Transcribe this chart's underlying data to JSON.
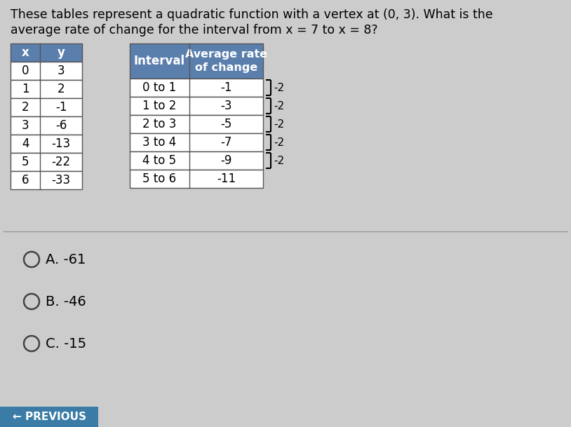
{
  "title_line1": "These tables represent a quadratic function with a vertex at (0, 3). What is the",
  "title_line2": "average rate of change for the interval from x = 7 to x = 8?",
  "table1_headers": [
    "x",
    "y"
  ],
  "table1_data": [
    [
      "0",
      "3"
    ],
    [
      "1",
      "2"
    ],
    [
      "2",
      "-1"
    ],
    [
      "3",
      "-6"
    ],
    [
      "4",
      "-13"
    ],
    [
      "5",
      "-22"
    ],
    [
      "6",
      "-33"
    ]
  ],
  "table2_header1": "Interval",
  "table2_header2": "Average rate\nof change",
  "table2_data": [
    [
      "0 to 1",
      "-1"
    ],
    [
      "1 to 2",
      "-3"
    ],
    [
      "2 to 3",
      "-5"
    ],
    [
      "3 to 4",
      "-7"
    ],
    [
      "4 to 5",
      "-9"
    ],
    [
      "5 to 6",
      "-11"
    ]
  ],
  "bracket_labels": [
    "-2",
    "-2",
    "-2",
    "-2",
    "-2"
  ],
  "choices": [
    "A. -61",
    "B. -46",
    "C. -15"
  ],
  "bg_color": "#cccccc",
  "header_color": "#5b7fad",
  "table_bg": "#ffffff",
  "table_border": "#555555",
  "text_color": "#000000",
  "button_color": "#3a7ca5",
  "button_text": "← PREVIOUS",
  "divider_color": "#999999"
}
